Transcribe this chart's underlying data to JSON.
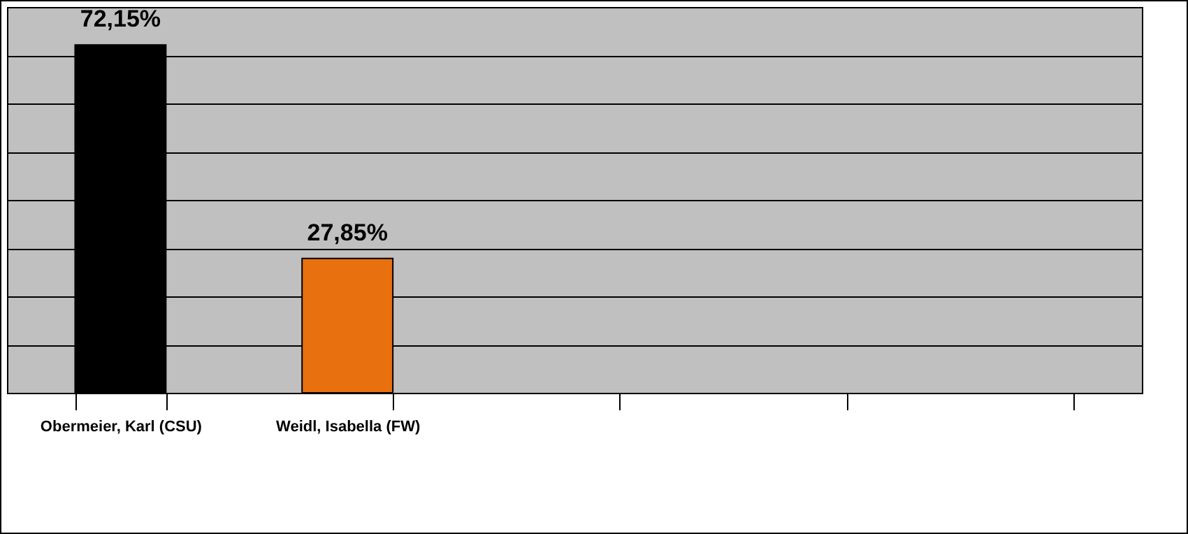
{
  "chart_data": {
    "type": "bar",
    "categories": [
      "Obermeier, Karl (CSU)",
      "Weidl, Isabella (FW)",
      null,
      null,
      null
    ],
    "values": [
      72.15,
      27.85,
      null,
      null,
      null
    ],
    "colors": [
      "#000000",
      "#e8700e",
      null,
      null,
      null
    ],
    "value_labels": [
      "72,15%",
      "27,85%",
      null,
      null,
      null
    ],
    "ylim": [
      0,
      80
    ],
    "yticks": [
      {
        "value": 0,
        "label": null
      },
      {
        "value": 10,
        "label": null
      },
      {
        "value": 20,
        "label": null
      },
      {
        "value": 30,
        "label": null
      },
      {
        "value": 40,
        "label": null
      },
      {
        "value": 50,
        "label": null
      },
      {
        "value": 60,
        "label": null
      },
      {
        "value": 70,
        "label": null
      },
      {
        "value": 80,
        "label": null
      }
    ],
    "grid": "y",
    "tick_labels": "x"
  }
}
